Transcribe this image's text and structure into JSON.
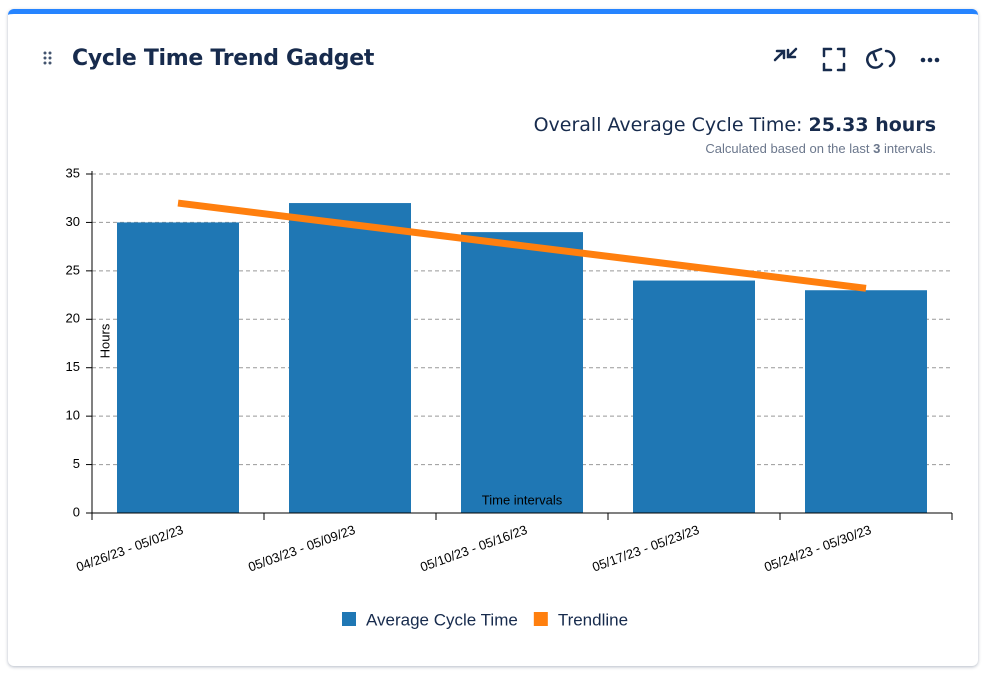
{
  "header": {
    "title": "Cycle Time Trend Gadget"
  },
  "summary": {
    "label": "Overall Average Cycle Time:",
    "value": "25.33 hours",
    "note_before": "Calculated based on the last",
    "note_count": 3,
    "note_after": "intervals."
  },
  "chart_data": {
    "type": "bar",
    "categories": [
      "04/26/23 - 05/02/23",
      "05/03/23 - 05/09/23",
      "05/10/23 - 05/16/23",
      "05/17/23 - 05/23/23",
      "05/24/23 - 05/30/23"
    ],
    "series": [
      {
        "name": "Average Cycle Time",
        "type": "bar",
        "color": "#1f77b4",
        "values": [
          30,
          32,
          29,
          24,
          23
        ]
      },
      {
        "name": "Trendline",
        "type": "line",
        "color": "#ff7f0e",
        "values": [
          32,
          29.8,
          27.6,
          25.4,
          23.2
        ]
      }
    ],
    "y_label": "Hours",
    "x_label": "Time intervals",
    "ylim": [
      0,
      35
    ],
    "yticks": [
      0,
      5,
      10,
      15,
      20,
      25,
      30,
      35
    ],
    "grid": true
  }
}
